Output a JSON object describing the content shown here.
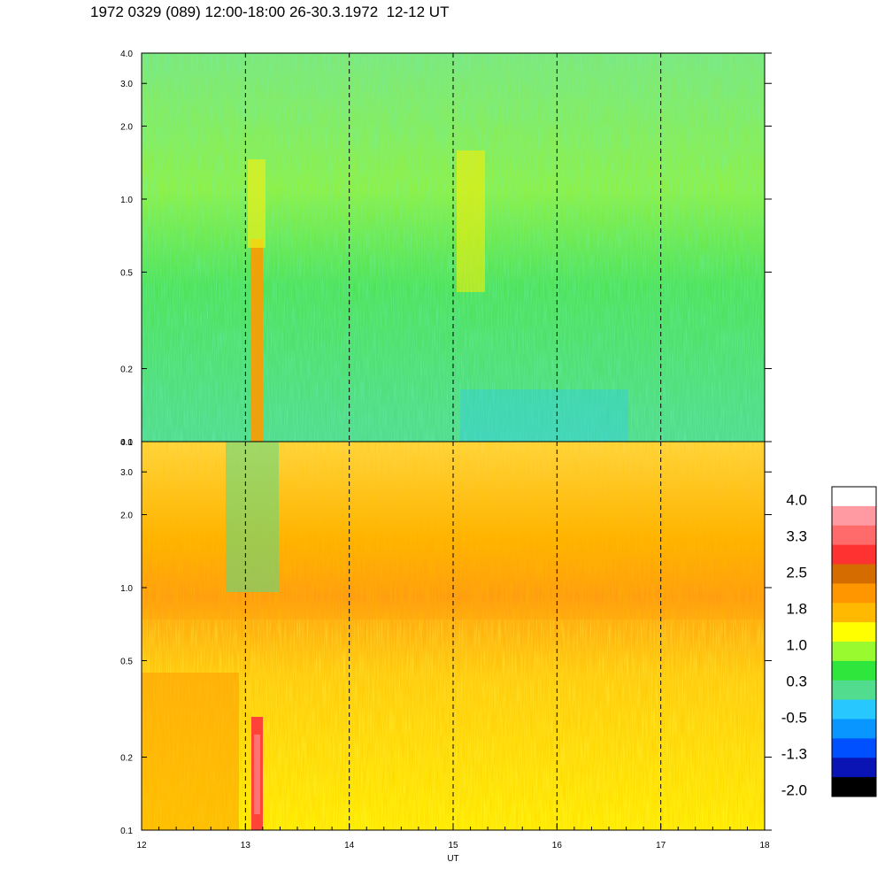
{
  "title": "1972 0329 (089) 12:00-18:00 26-30.3.1972  12-12 UT",
  "chart_data": [
    {
      "type": "heatmap",
      "panel": "upper",
      "x": {
        "label": "",
        "range": [
          12,
          18
        ],
        "ticks": [
          12,
          13,
          14,
          15,
          16,
          17,
          18
        ],
        "dashed_lines_at": [
          13,
          14,
          15,
          16,
          17
        ]
      },
      "y": {
        "label": "",
        "scale": "log",
        "range": [
          0.1,
          4.0
        ],
        "ticks": [
          0.1,
          0.2,
          0.5,
          1.0,
          2.0,
          3.0,
          4.0
        ],
        "tick_labels": [
          "0.1",
          "0.2",
          "0.5",
          "1.0",
          "2.0",
          "3.0",
          "4.0"
        ]
      },
      "dominant_colors": [
        "#52dc8e",
        "#2ee63c",
        "#9afa30"
      ],
      "features": "mostly green/light-green; orange/yellow column near 13.1 UT below 0.8; yellow patch near 15.1-15.3 UT around 0.4-2.0"
    },
    {
      "type": "heatmap",
      "panel": "lower",
      "x": {
        "label": "UT",
        "range": [
          12,
          18
        ],
        "ticks": [
          12,
          13,
          14,
          15,
          16,
          17,
          18
        ],
        "tick_labels": [
          "12",
          "13",
          "14",
          "15",
          "16",
          "17",
          "18"
        ],
        "dashed_lines_at": [
          13,
          14,
          15,
          16,
          17
        ]
      },
      "y": {
        "label": "",
        "scale": "log",
        "range": [
          0.1,
          4.0
        ],
        "ticks": [
          0.1,
          0.2,
          0.5,
          1.0,
          2.0,
          3.0,
          4.0
        ],
        "tick_labels": [
          "0.1",
          "0.2",
          "0.5",
          "1.0",
          "2.0",
          "3.0",
          "4.0"
        ]
      },
      "dominant_colors": [
        "#ffee00",
        "#ffb400",
        "#ff9600"
      ],
      "features": "mostly yellow/orange; red column near 13.1 UT at 0.1-0.35; green streaks near 12.9-13.3 UT above 1.0"
    }
  ],
  "colorbar": {
    "labels": [
      "4.0",
      "3.3",
      "2.5",
      "1.8",
      "1.0",
      "0.3",
      "-0.5",
      "-1.3",
      "-2.0"
    ],
    "colors": [
      "#ffffff",
      "#ff9aa2",
      "#ff6a6a",
      "#ff3232",
      "#d46c00",
      "#ff9600",
      "#ffb900",
      "#ffff00",
      "#9afa30",
      "#2ee63c",
      "#52dc8e",
      "#28c8ff",
      "#0a96ff",
      "#0050ff",
      "#0a14b4",
      "#000000"
    ]
  }
}
